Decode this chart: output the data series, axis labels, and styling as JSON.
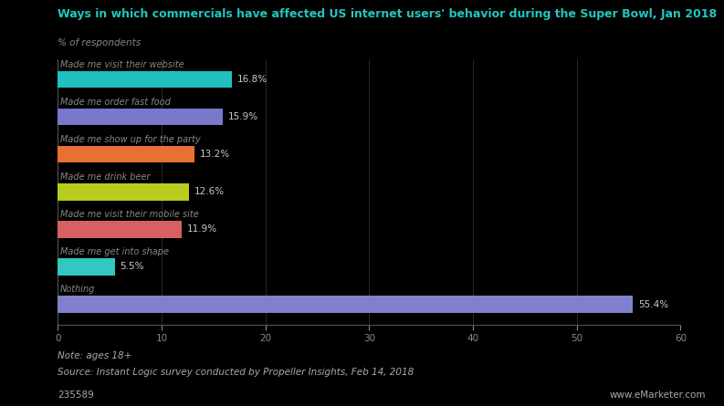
{
  "title": "Ways in which commercials have affected US internet users' behavior during the Super Bowl, Jan 2018",
  "subtitle": "% of respondents",
  "categories": [
    "Nothing",
    "Made me get into shape",
    "Made me visit their mobile site",
    "Made me drink beer",
    "Made me show up for the party",
    "Made me order fast food",
    "Made me visit their website"
  ],
  "values": [
    55.4,
    5.5,
    11.9,
    12.6,
    13.2,
    15.9,
    16.8
  ],
  "colors": [
    "#8080cc",
    "#30c8c0",
    "#d86060",
    "#b8cc20",
    "#e87030",
    "#7878cc",
    "#20c0c0"
  ],
  "xlim": [
    0,
    60
  ],
  "xticks": [
    0,
    10,
    20,
    30,
    40,
    50,
    60
  ],
  "note": "Note: ages 18+",
  "source": "Source: Instant Logic survey conducted by Propeller Insights, Feb 14, 2018",
  "id": "235589",
  "watermark": "www.eMarketer.com",
  "bg_color": "#000000",
  "bar_label_color": "#cccccc",
  "title_color": "#20c8c0",
  "subtitle_color": "#888888",
  "cat_label_color": "#888888",
  "note_color": "#aaaaaa",
  "grid_color": "#333333",
  "tick_color": "#888888",
  "axis_color": "#555555"
}
